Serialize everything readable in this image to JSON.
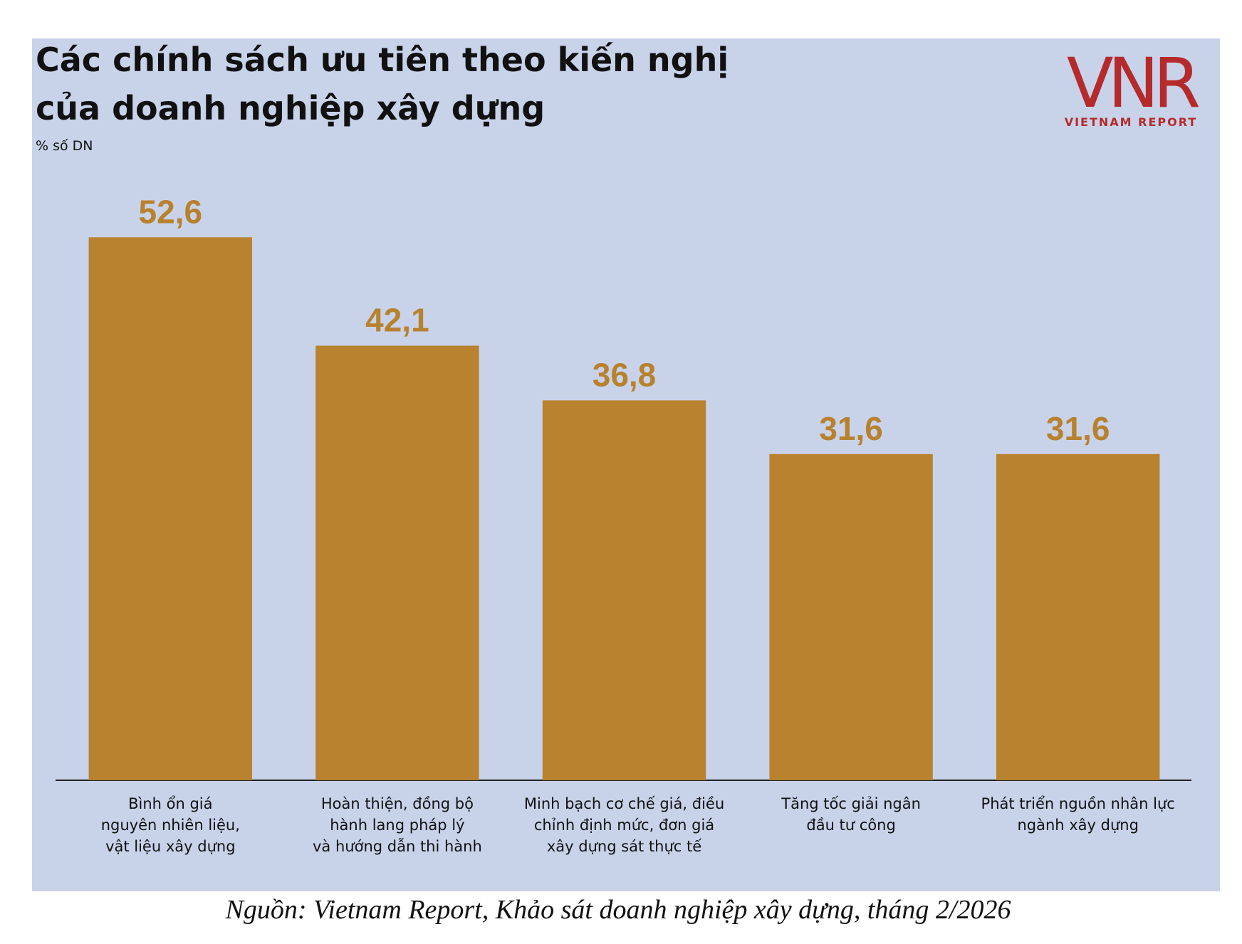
{
  "chart_data": {
    "type": "bar",
    "title": "Các chính sách ưu tiên theo kiến nghị\ncủa doanh nghiệp xây dựng",
    "subtitle": "% số DN",
    "categories": [
      "Bình ổn giá\nnguyên nhiên liệu,\nvật liệu xây dựng",
      "Hoàn thiện, đồng bộ\nhành lang pháp lý\nvà hướng dẫn thi hành",
      "Minh bạch cơ chế giá, điều\nchỉnh định mức, đơn giá\nxây dựng sát thực tế",
      "Tăng tốc giải ngân\nđầu tư công",
      "Phát triển nguồn nhân lực\nngành xây dựng"
    ],
    "values": [
      52.6,
      42.1,
      36.8,
      31.6,
      31.6
    ],
    "value_labels": [
      "52,6",
      "42,1",
      "36,8",
      "31,6",
      "31,6"
    ],
    "color": "#b8822f",
    "ylim": [
      0,
      60
    ]
  },
  "logo": {
    "mark": "VNR",
    "name": "VIETNAM REPORT"
  },
  "source": "Nguồn: Vietnam Report, Khảo sát doanh nghiệp xây dựng, tháng 2/2026"
}
